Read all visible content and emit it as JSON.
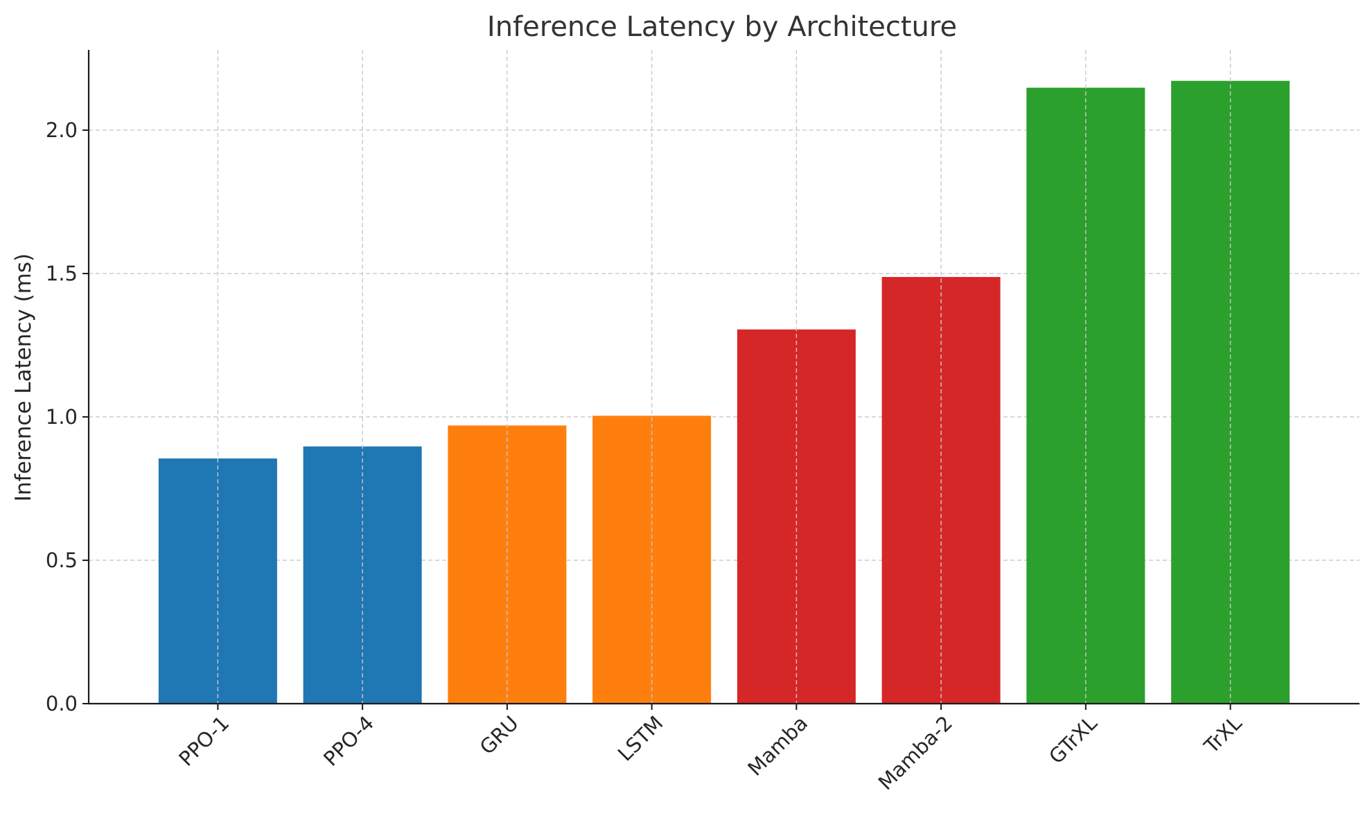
{
  "chart_data": {
    "type": "bar",
    "title": "Inference Latency by Architecture",
    "xlabel": "",
    "ylabel": "Inference Latency (ms)",
    "categories": [
      "PPO-1",
      "PPO-4",
      "GRU",
      "LSTM",
      "Mamba",
      "Mamba-2",
      "GTrXL",
      "TrXL"
    ],
    "values": [
      0.855,
      0.897,
      0.97,
      1.004,
      1.305,
      1.488,
      2.148,
      2.172
    ],
    "colors": [
      "#1f77b4",
      "#1f77b4",
      "#ff7f0e",
      "#ff7f0e",
      "#d62728",
      "#d62728",
      "#2ca02c",
      "#2ca02c"
    ],
    "ylim": [
      0,
      2.28
    ],
    "yticks": [
      "0.0",
      "0.5",
      "1.0",
      "1.5",
      "2.0"
    ],
    "grid": true,
    "xtick_rotation": -45
  }
}
